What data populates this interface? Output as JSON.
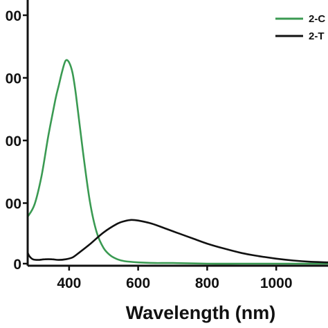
{
  "chart_data": {
    "type": "line",
    "title": "",
    "xlabel": "Wavelength (nm)",
    "ylabel": "",
    "xlim": [
      280,
      1150
    ],
    "ylim": [
      0,
      400
    ],
    "x_ticks": [
      400,
      600,
      800,
      1000
    ],
    "x_tick_labels": [
      "400",
      "600",
      "800",
      "1000"
    ],
    "y_ticks": [
      0,
      100,
      200,
      300,
      400
    ],
    "y_tick_labels": [
      "0",
      "00",
      "00",
      "00",
      "00"
    ],
    "grid": false,
    "legend": "top-right",
    "series": [
      {
        "name": "2-C",
        "color": "#3a9a52",
        "x": [
          280,
          300,
          320,
          340,
          360,
          370,
          380,
          390,
          400,
          410,
          420,
          440,
          460,
          480,
          500,
          520,
          540,
          560,
          600,
          650,
          700,
          800,
          900,
          1000,
          1150
        ],
        "y": [
          75,
          95,
          140,
          205,
          262,
          285,
          308,
          325,
          322,
          305,
          270,
          180,
          100,
          50,
          25,
          13,
          7,
          4,
          2,
          1,
          1,
          0,
          0,
          0,
          0
        ]
      },
      {
        "name": "2-T",
        "color": "#111111",
        "x": [
          280,
          285,
          295,
          310,
          330,
          350,
          370,
          390,
          410,
          430,
          460,
          500,
          540,
          560,
          580,
          600,
          640,
          680,
          720,
          760,
          800,
          850,
          900,
          950,
          1000,
          1050,
          1100,
          1150
        ],
        "y": [
          18,
          12,
          7,
          6,
          7,
          7,
          6,
          7,
          10,
          18,
          31,
          50,
          64,
          68,
          70,
          69,
          64,
          56,
          48,
          40,
          32,
          24,
          17,
          12,
          8,
          5,
          3,
          2
        ]
      }
    ]
  }
}
